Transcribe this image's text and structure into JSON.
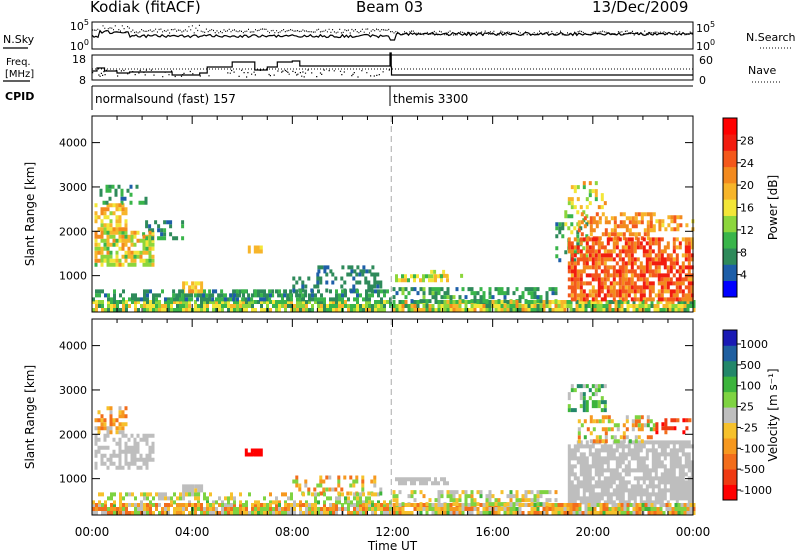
{
  "header": {
    "station": "Kodiak (fitACF)",
    "beam": "Beam 03",
    "date": "13/Dec/2009"
  },
  "labels": {
    "nsky": "N.Sky",
    "nsearch": "N.Search",
    "freq1": "Freq.",
    "freq2": "[MHz]",
    "nave": "Nave",
    "cpid": "CPID",
    "tick_noise_hi": "10^5",
    "tick_noise_lo": "10^0",
    "tick_freq_hi": "18",
    "tick_freq_lo": "8",
    "tick_nave_hi": "60",
    "tick_nave_lo": "0"
  },
  "cpid_segments": [
    {
      "label": "normalsound (fast) 157",
      "start": 0,
      "end": 11.9
    },
    {
      "label": "themis 3300",
      "start": 11.9,
      "end": 24
    }
  ],
  "colors": {
    "power": [
      "#0000ff",
      "#1d5ea8",
      "#2e8a5a",
      "#39b54a",
      "#8cd63c",
      "#f3e638",
      "#f7b52a",
      "#f38a1e",
      "#f4581b",
      "#f21c0f",
      "#ff0000"
    ],
    "velocity": [
      "#1a1ab4",
      "#1f5fa0",
      "#23876a",
      "#3cb43c",
      "#7ed341",
      "#bebebe",
      "#f6c12c",
      "#f6981f",
      "#f26d1b",
      "#ef3a12",
      "#ff0000"
    ],
    "ground": "#bebebe"
  },
  "chart_data": [
    {
      "type": "heatmap",
      "name": "power",
      "xlabel": "",
      "ylabel": "Slant Range [km]",
      "x_range": [
        0,
        24
      ],
      "ylim": [
        180,
        4600
      ],
      "y_ticks": [
        1000,
        2000,
        3000,
        4000
      ],
      "colorbar": {
        "label": "Power [dB]",
        "range": [
          0,
          32
        ],
        "ticks": [
          4,
          8,
          12,
          16,
          20,
          24,
          28
        ]
      },
      "regions": [
        {
          "t": [
            0.0,
            11.9
          ],
          "r": [
            180,
            420
          ],
          "v": [
            6,
            20
          ],
          "d": 0.85
        },
        {
          "t": [
            0.0,
            11.9
          ],
          "r": [
            420,
            650
          ],
          "v": [
            4,
            10
          ],
          "d": 0.55
        },
        {
          "t": [
            0.1,
            2.4
          ],
          "r": [
            1200,
            2000
          ],
          "v": [
            10,
            24
          ],
          "d": 0.75
        },
        {
          "t": [
            0.1,
            1.3
          ],
          "r": [
            2000,
            2600
          ],
          "v": [
            14,
            22
          ],
          "d": 0.6
        },
        {
          "t": [
            0.3,
            2.3
          ],
          "r": [
            2600,
            3050
          ],
          "v": [
            4,
            10
          ],
          "d": 0.25
        },
        {
          "t": [
            2.0,
            3.6
          ],
          "r": [
            1800,
            2200
          ],
          "v": [
            4,
            10
          ],
          "d": 0.35
        },
        {
          "t": [
            3.6,
            4.4
          ],
          "r": [
            600,
            820
          ],
          "v": [
            14,
            24
          ],
          "d": 0.8
        },
        {
          "t": [
            3.2,
            8.5
          ],
          "r": [
            420,
            620
          ],
          "v": [
            4,
            10
          ],
          "d": 0.45
        },
        {
          "t": [
            6.1,
            6.8
          ],
          "r": [
            1500,
            1650
          ],
          "v": [
            16,
            20
          ],
          "d": 0.8
        },
        {
          "t": [
            8.0,
            11.5
          ],
          "r": [
            620,
            1050
          ],
          "v": [
            4,
            8
          ],
          "d": 0.35
        },
        {
          "t": [
            9.0,
            11.2
          ],
          "r": [
            1050,
            1150
          ],
          "v": [
            4,
            6
          ],
          "d": 0.5
        },
        {
          "t": [
            12.0,
            24.0
          ],
          "r": [
            180,
            380
          ],
          "v": [
            6,
            22
          ],
          "d": 0.9
        },
        {
          "t": [
            12.0,
            18.5
          ],
          "r": [
            380,
            700
          ],
          "v": [
            4,
            12
          ],
          "d": 0.5
        },
        {
          "t": [
            12.1,
            14.2
          ],
          "r": [
            850,
            950
          ],
          "v": [
            10,
            20
          ],
          "d": 0.7
        },
        {
          "t": [
            13.5,
            14.8
          ],
          "r": [
            950,
            1050
          ],
          "v": [
            12,
            20
          ],
          "d": 0.6
        },
        {
          "t": [
            18.5,
            19.8
          ],
          "r": [
            1300,
            2400
          ],
          "v": [
            4,
            16
          ],
          "d": 0.45
        },
        {
          "t": [
            19.0,
            24.0
          ],
          "r": [
            420,
            1800
          ],
          "v": [
            20,
            30
          ],
          "d": 0.75
        },
        {
          "t": [
            19.4,
            22.5
          ],
          "r": [
            1800,
            2400
          ],
          "v": [
            18,
            26
          ],
          "d": 0.55
        },
        {
          "t": [
            19.0,
            20.5
          ],
          "r": [
            2500,
            3100
          ],
          "v": [
            10,
            22
          ],
          "d": 0.3
        },
        {
          "t": [
            22.5,
            24.0
          ],
          "r": [
            2000,
            2300
          ],
          "v": [
            16,
            26
          ],
          "d": 0.4
        }
      ]
    },
    {
      "type": "heatmap",
      "name": "velocity",
      "xlabel": "Time UT",
      "ylabel": "Slant Range [km]",
      "x_range": [
        0,
        24
      ],
      "x_ticks": [
        "00:00",
        "04:00",
        "08:00",
        "12:00",
        "16:00",
        "20:00",
        "00:00"
      ],
      "ylim": [
        180,
        4600
      ],
      "y_ticks": [
        1000,
        2000,
        3000,
        4000
      ],
      "colorbar": {
        "label": "Velocity [m s⁻¹]",
        "ticks": [
          "1000",
          "500",
          "100",
          "25",
          "-25",
          "-100",
          "-500",
          "-1000"
        ]
      },
      "regions": [
        {
          "t": [
            0.0,
            11.9
          ],
          "r": [
            180,
            420
          ],
          "v": [
            -2,
            1
          ],
          "d": 0.85
        },
        {
          "t": [
            0.0,
            11.9
          ],
          "r": [
            420,
            650
          ],
          "v": [
            -1,
            1
          ],
          "d": 0.5
        },
        {
          "t": [
            0.1,
            2.4
          ],
          "r": [
            1200,
            2000
          ],
          "v": [
            0,
            0
          ],
          "d": 0.6,
          "g": true
        },
        {
          "t": [
            0.1,
            1.3
          ],
          "r": [
            2000,
            2600
          ],
          "v": [
            -2,
            0
          ],
          "d": 0.4
        },
        {
          "t": [
            3.6,
            4.4
          ],
          "r": [
            600,
            820
          ],
          "v": [
            -1,
            1
          ],
          "d": 0.8,
          "g": true
        },
        {
          "t": [
            6.1,
            6.8
          ],
          "r": [
            1500,
            1650
          ],
          "v": [
            -3,
            -3
          ],
          "d": 0.9
        },
        {
          "t": [
            8.0,
            11.5
          ],
          "r": [
            620,
            1050
          ],
          "v": [
            -2,
            1
          ],
          "d": 0.35
        },
        {
          "t": [
            12.0,
            24.0
          ],
          "r": [
            180,
            380
          ],
          "v": [
            -2,
            1
          ],
          "d": 0.9
        },
        {
          "t": [
            12.0,
            18.5
          ],
          "r": [
            380,
            700
          ],
          "v": [
            -1,
            1
          ],
          "d": 0.5
        },
        {
          "t": [
            12.1,
            14.2
          ],
          "r": [
            850,
            950
          ],
          "v": [
            0,
            0
          ],
          "d": 0.7,
          "g": true
        },
        {
          "t": [
            19.0,
            24.0
          ],
          "r": [
            420,
            1800
          ],
          "v": [
            0,
            0
          ],
          "d": 0.8,
          "g": true
        },
        {
          "t": [
            19.4,
            22.5
          ],
          "r": [
            1800,
            2400
          ],
          "v": [
            -2,
            1
          ],
          "d": 0.45
        },
        {
          "t": [
            19.0,
            20.5
          ],
          "r": [
            2500,
            3100
          ],
          "v": [
            0,
            2
          ],
          "d": 0.35
        },
        {
          "t": [
            22.5,
            24.0
          ],
          "r": [
            2000,
            2300
          ],
          "v": [
            -3,
            -2
          ],
          "d": 0.4
        }
      ]
    }
  ]
}
